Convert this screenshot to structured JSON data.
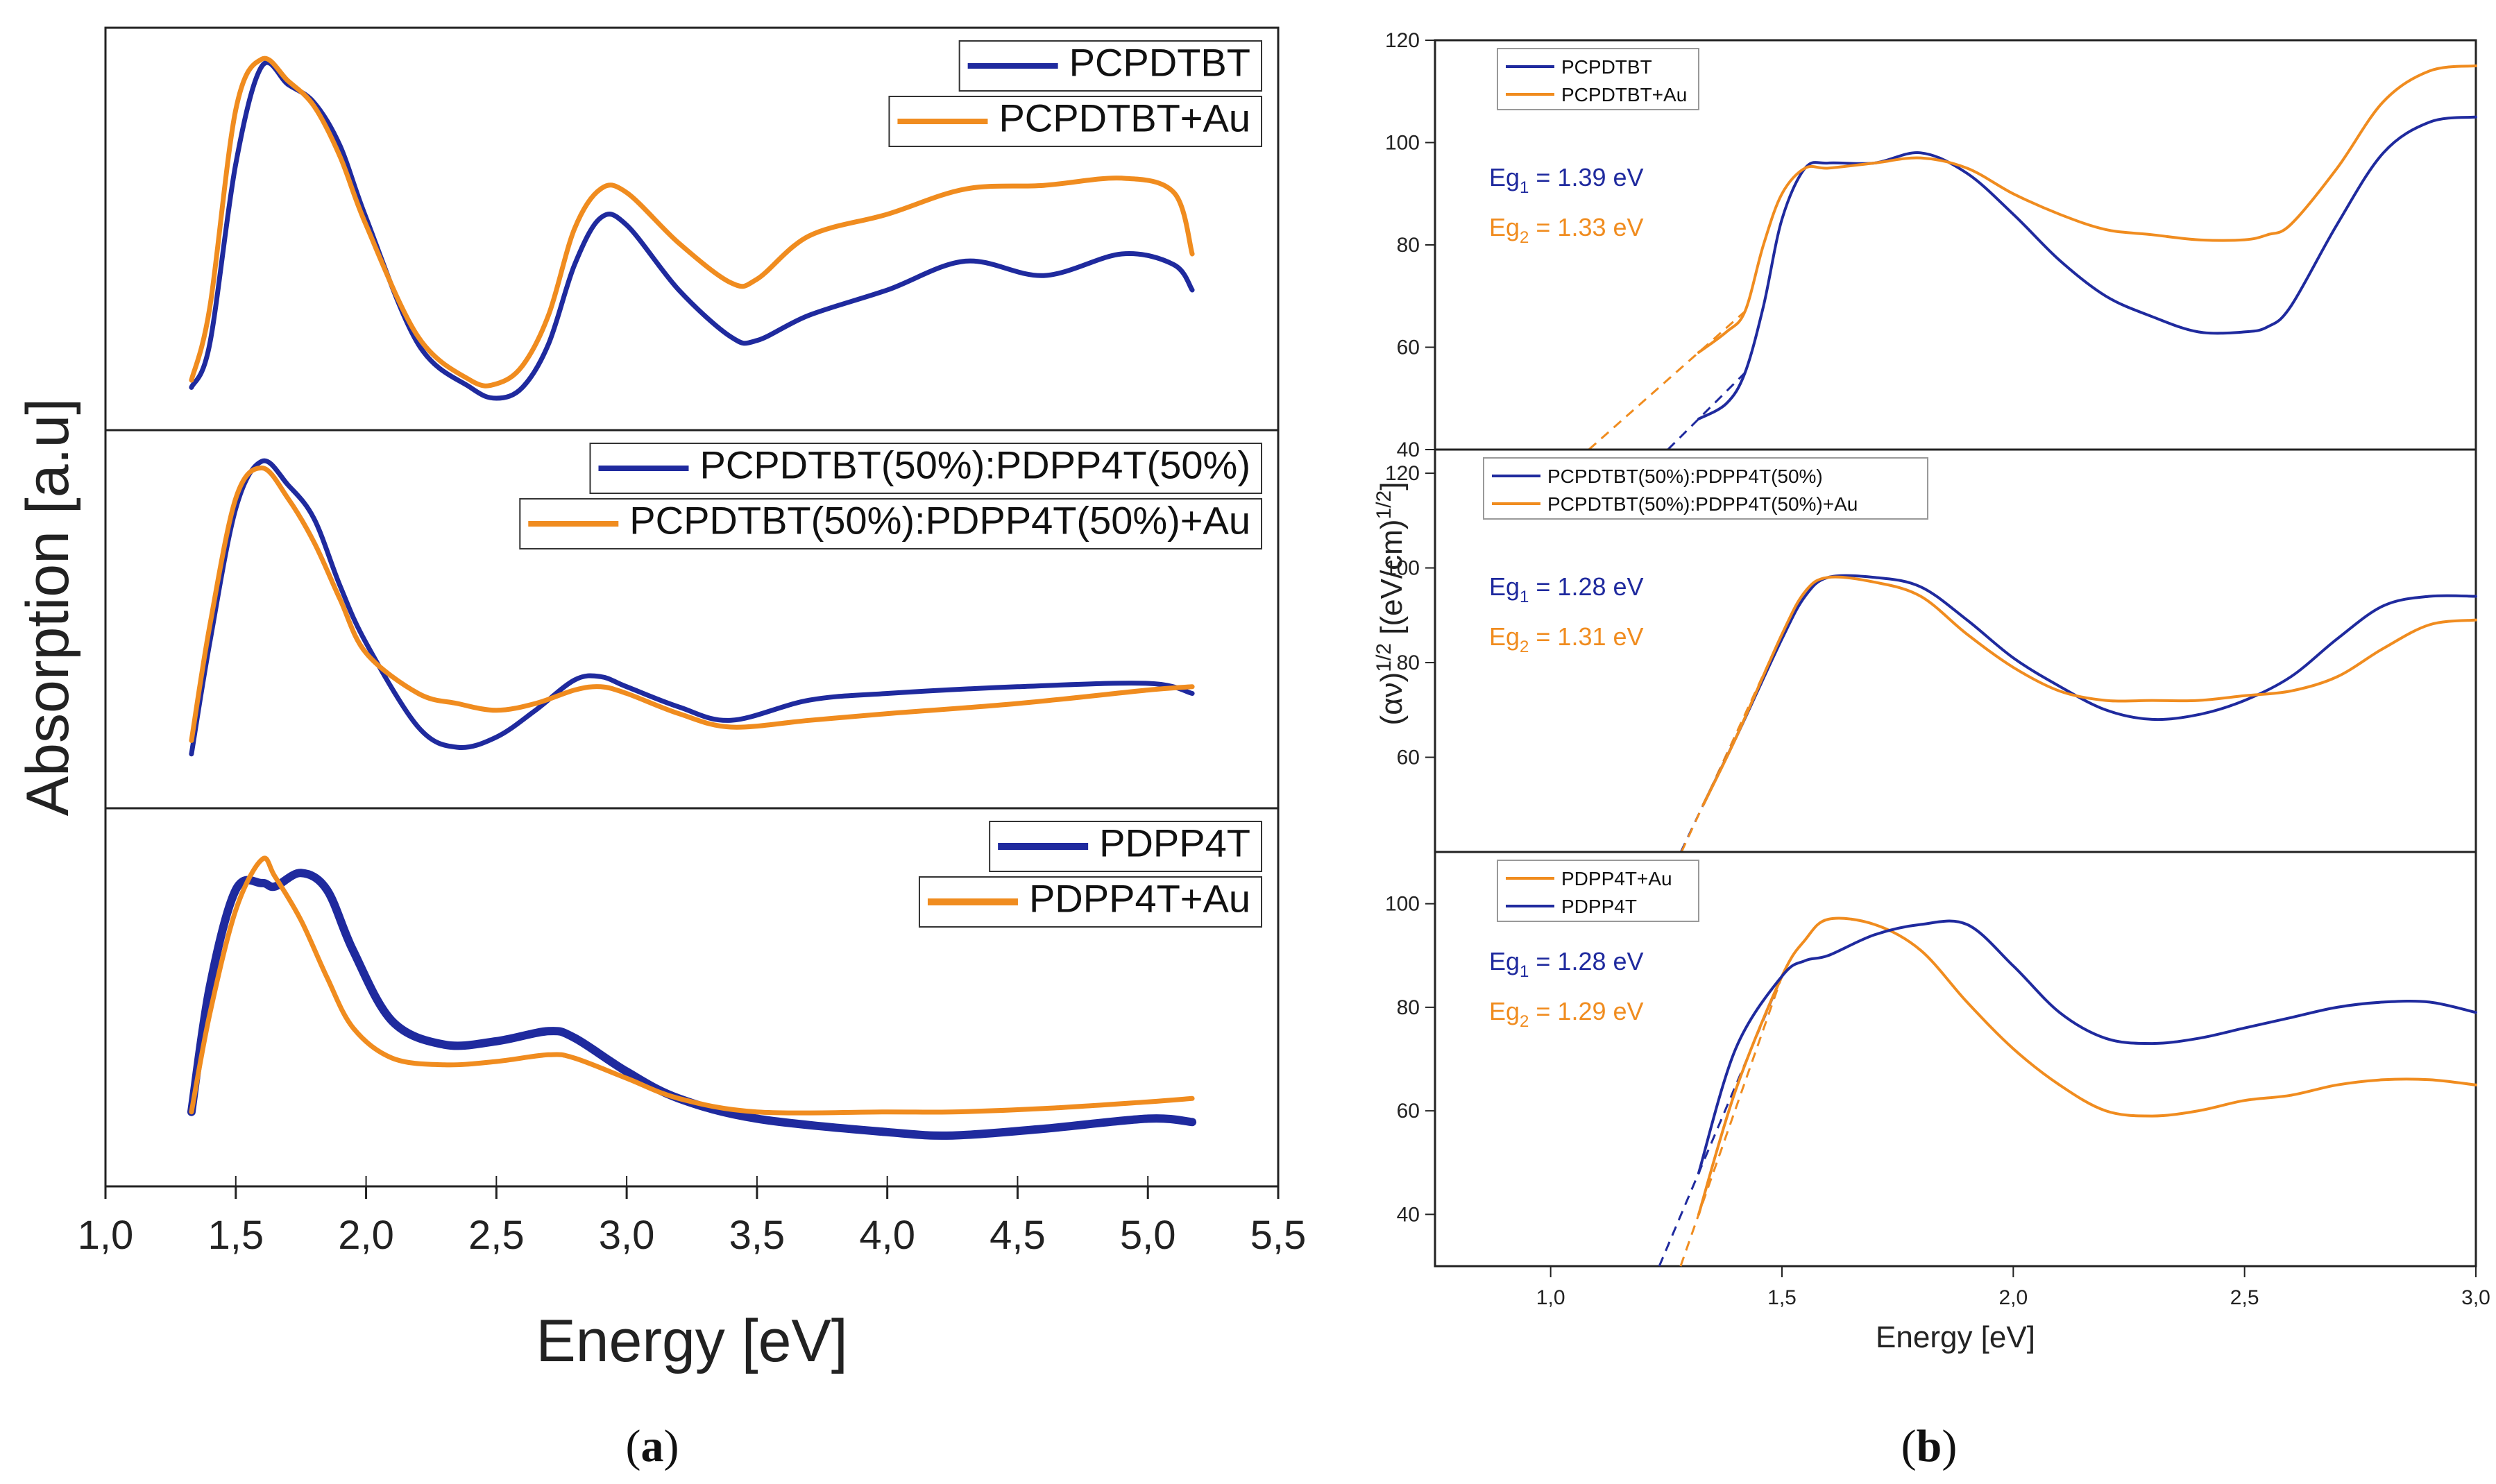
{
  "colors": {
    "blue": "#1f2a9e",
    "orange": "#f08c1f"
  },
  "panel_a": {
    "caption": "a",
    "xlabel": "Energy [eV]",
    "ylabel": "Absorption [a.u]",
    "xlim": [
      1.0,
      5.5
    ],
    "xticks": [
      "1,0",
      "1,5",
      "2,0",
      "2,5",
      "3,0",
      "3,5",
      "4,0",
      "4,5",
      "5,0",
      "5,5"
    ]
  },
  "panel_b": {
    "caption": "b",
    "xlabel": "Energy [eV]",
    "ylabel": "(αν)^1/2 [(eV/cm)^1/2]",
    "xlim": [
      0.75,
      3.0
    ],
    "xticks": [
      "1,0",
      "1,5",
      "2,0",
      "2,5",
      "3,0"
    ]
  },
  "chart_data": [
    {
      "type": "line",
      "title": "",
      "xlabel": "Energy [eV]",
      "ylabel": "Absorption [a.u]",
      "xlim": [
        1.0,
        5.5
      ],
      "ylim": [
        0,
        1
      ],
      "series": [
        {
          "name": "PCPDTBT",
          "color": "blue",
          "x": [
            1.33,
            1.4,
            1.5,
            1.6,
            1.7,
            1.8,
            1.9,
            2.0,
            2.2,
            2.4,
            2.5,
            2.6,
            2.7,
            2.8,
            2.9,
            3.0,
            3.2,
            3.4,
            3.5,
            3.7,
            4.0,
            4.3,
            4.6,
            4.9,
            5.1,
            5.17
          ],
          "y": [
            0.08,
            0.2,
            0.7,
            0.97,
            0.92,
            0.87,
            0.75,
            0.55,
            0.2,
            0.08,
            0.05,
            0.08,
            0.2,
            0.42,
            0.55,
            0.53,
            0.35,
            0.22,
            0.21,
            0.28,
            0.35,
            0.43,
            0.39,
            0.45,
            0.42,
            0.35
          ]
        },
        {
          "name": "PCPDTBT+Au",
          "color": "orange",
          "x": [
            1.33,
            1.4,
            1.5,
            1.6,
            1.7,
            1.8,
            1.9,
            2.0,
            2.2,
            2.4,
            2.5,
            2.6,
            2.7,
            2.8,
            2.9,
            3.0,
            3.2,
            3.4,
            3.5,
            3.7,
            4.0,
            4.3,
            4.6,
            4.9,
            5.1,
            5.17
          ],
          "y": [
            0.1,
            0.3,
            0.85,
            0.99,
            0.93,
            0.86,
            0.72,
            0.53,
            0.22,
            0.1,
            0.09,
            0.14,
            0.28,
            0.52,
            0.63,
            0.62,
            0.48,
            0.37,
            0.38,
            0.5,
            0.56,
            0.63,
            0.64,
            0.66,
            0.62,
            0.45
          ]
        }
      ]
    },
    {
      "type": "line",
      "title": "",
      "xlabel": "Energy [eV]",
      "ylabel": "Absorption [a.u]",
      "xlim": [
        1.0,
        5.5
      ],
      "ylim": [
        0,
        1
      ],
      "series": [
        {
          "name": "PCPDTBT(50%):PDPP4T(50%)",
          "color": "blue",
          "x": [
            1.33,
            1.4,
            1.5,
            1.6,
            1.7,
            1.8,
            1.9,
            2.0,
            2.2,
            2.35,
            2.5,
            2.65,
            2.8,
            2.9,
            3.0,
            3.2,
            3.4,
            3.7,
            4.0,
            4.5,
            5.0,
            5.17
          ],
          "y": [
            0.12,
            0.45,
            0.85,
            0.99,
            0.92,
            0.82,
            0.62,
            0.45,
            0.2,
            0.14,
            0.17,
            0.25,
            0.34,
            0.35,
            0.32,
            0.26,
            0.22,
            0.28,
            0.3,
            0.32,
            0.33,
            0.3
          ]
        },
        {
          "name": "PCPDTBT(50%):PDPP4T(50%)+Au",
          "color": "orange",
          "x": [
            1.33,
            1.4,
            1.5,
            1.6,
            1.7,
            1.8,
            1.9,
            2.0,
            2.2,
            2.35,
            2.5,
            2.65,
            2.8,
            2.9,
            3.0,
            3.2,
            3.4,
            3.7,
            4.0,
            4.5,
            5.0,
            5.17
          ],
          "y": [
            0.16,
            0.5,
            0.88,
            0.97,
            0.88,
            0.75,
            0.58,
            0.42,
            0.3,
            0.27,
            0.25,
            0.27,
            0.31,
            0.32,
            0.3,
            0.24,
            0.2,
            0.22,
            0.24,
            0.27,
            0.31,
            0.32
          ]
        }
      ]
    },
    {
      "type": "line",
      "title": "",
      "xlabel": "Energy [eV]",
      "ylabel": "Absorption [a.u]",
      "xlim": [
        1.0,
        5.5
      ],
      "ylim": [
        0,
        1
      ],
      "series": [
        {
          "name": "PDPP4T",
          "color": "blue",
          "x": [
            1.33,
            1.4,
            1.5,
            1.6,
            1.65,
            1.75,
            1.85,
            1.95,
            2.1,
            2.3,
            2.5,
            2.7,
            2.8,
            3.0,
            3.2,
            3.5,
            4.0,
            4.25,
            4.6,
            5.0,
            5.17
          ],
          "y": [
            0.18,
            0.55,
            0.84,
            0.86,
            0.85,
            0.89,
            0.84,
            0.66,
            0.45,
            0.38,
            0.39,
            0.42,
            0.4,
            0.3,
            0.22,
            0.16,
            0.12,
            0.11,
            0.13,
            0.16,
            0.15
          ]
        },
        {
          "name": "PDPP4T+Au",
          "color": "orange",
          "x": [
            1.33,
            1.4,
            1.5,
            1.6,
            1.65,
            1.75,
            1.85,
            1.95,
            2.1,
            2.3,
            2.5,
            2.7,
            2.8,
            3.0,
            3.2,
            3.5,
            4.0,
            4.25,
            4.6,
            5.0,
            5.17
          ],
          "y": [
            0.18,
            0.47,
            0.78,
            0.93,
            0.88,
            0.75,
            0.58,
            0.43,
            0.34,
            0.32,
            0.33,
            0.35,
            0.34,
            0.28,
            0.22,
            0.18,
            0.18,
            0.18,
            0.19,
            0.21,
            0.22
          ]
        }
      ]
    },
    {
      "type": "line",
      "title": "",
      "xlabel": "Energy [eV]",
      "ylabel": "(αν)^1/2 [(eV/cm)^1/2]",
      "xlim": [
        0.75,
        3.0
      ],
      "ylim": [
        40,
        120
      ],
      "yticks": [
        40,
        60,
        80,
        100,
        120
      ],
      "annotations": [
        {
          "label": "Eg1 = 1.39 eV",
          "color": "blue"
        },
        {
          "label": "Eg2 = 1.33 eV",
          "color": "orange"
        }
      ],
      "series": [
        {
          "name": "PCPDTBT",
          "color": "blue",
          "x": [
            1.32,
            1.38,
            1.42,
            1.46,
            1.5,
            1.55,
            1.6,
            1.7,
            1.8,
            1.9,
            2.0,
            2.1,
            2.2,
            2.3,
            2.4,
            2.5,
            2.55,
            2.6,
            2.7,
            2.8,
            2.9,
            3.0
          ],
          "y": [
            46,
            49,
            55,
            68,
            85,
            95,
            96,
            96,
            98,
            94,
            86,
            77,
            70,
            66,
            63,
            63,
            64,
            68,
            84,
            98,
            104,
            105
          ]
        },
        {
          "name": "PCPDTBT+Au",
          "color": "orange",
          "x": [
            1.32,
            1.38,
            1.42,
            1.46,
            1.5,
            1.55,
            1.6,
            1.7,
            1.8,
            1.9,
            2.0,
            2.1,
            2.2,
            2.3,
            2.4,
            2.5,
            2.55,
            2.6,
            2.7,
            2.8,
            2.9,
            3.0
          ],
          "y": [
            59,
            63,
            67,
            80,
            90,
            95,
            95,
            96,
            97,
            95,
            90,
            86,
            83,
            82,
            81,
            81,
            82,
            84,
            95,
            108,
            114,
            115
          ]
        }
      ]
    },
    {
      "type": "line",
      "title": "",
      "xlabel": "Energy [eV]",
      "ylabel": "(αν)^1/2 [(eV/cm)^1/2]",
      "xlim": [
        0.75,
        3.0
      ],
      "ylim": [
        40,
        125
      ],
      "yticks": [
        60,
        80,
        100,
        120
      ],
      "annotations": [
        {
          "label": "Eg1 = 1.28 eV",
          "color": "blue"
        },
        {
          "label": "Eg2 = 1.31 eV",
          "color": "orange"
        }
      ],
      "series": [
        {
          "name": "PCPDTBT(50%):PDPP4T(50%)",
          "color": "blue",
          "x": [
            1.33,
            1.4,
            1.5,
            1.55,
            1.6,
            1.7,
            1.8,
            1.9,
            2.0,
            2.1,
            2.2,
            2.3,
            2.4,
            2.5,
            2.6,
            2.7,
            2.8,
            2.9,
            3.0
          ],
          "y": [
            50,
            64,
            85,
            94,
            98,
            98,
            96,
            89,
            81,
            75,
            70,
            68,
            69,
            72,
            77,
            85,
            92,
            94,
            94
          ]
        },
        {
          "name": "PCPDTBT(50%):PDPP4T(50%)+Au",
          "color": "orange",
          "x": [
            1.33,
            1.4,
            1.5,
            1.55,
            1.6,
            1.7,
            1.8,
            1.9,
            2.0,
            2.1,
            2.2,
            2.3,
            2.4,
            2.5,
            2.6,
            2.7,
            2.8,
            2.9,
            3.0
          ],
          "y": [
            50,
            64,
            86,
            95,
            98,
            97,
            94,
            86,
            79,
            74,
            72,
            72,
            72,
            73,
            74,
            77,
            83,
            88,
            89
          ]
        }
      ]
    },
    {
      "type": "line",
      "title": "",
      "xlabel": "Energy [eV]",
      "ylabel": "(αν)^1/2 [(eV/cm)^1/2]",
      "xlim": [
        0.75,
        3.0
      ],
      "ylim": [
        30,
        110
      ],
      "yticks": [
        40,
        60,
        80,
        100
      ],
      "annotations": [
        {
          "label": "Eg1 = 1.28 eV",
          "color": "blue"
        },
        {
          "label": "Eg2 = 1.29 eV",
          "color": "orange"
        }
      ],
      "series": [
        {
          "name": "PDPP4T+Au",
          "color": "orange",
          "x": [
            1.32,
            1.4,
            1.5,
            1.55,
            1.6,
            1.7,
            1.8,
            1.9,
            2.0,
            2.1,
            2.2,
            2.3,
            2.4,
            2.5,
            2.6,
            2.7,
            2.8,
            2.9,
            3.0
          ],
          "y": [
            40,
            64,
            86,
            93,
            97,
            96,
            91,
            81,
            72,
            65,
            60,
            59,
            60,
            62,
            63,
            65,
            66,
            66,
            65
          ]
        },
        {
          "name": "PDPP4T",
          "color": "blue",
          "x": [
            1.32,
            1.4,
            1.5,
            1.55,
            1.6,
            1.7,
            1.8,
            1.9,
            2.0,
            2.1,
            2.2,
            2.3,
            2.4,
            2.5,
            2.6,
            2.7,
            2.8,
            2.9,
            3.0
          ],
          "y": [
            48,
            72,
            86,
            89,
            90,
            94,
            96,
            96,
            88,
            79,
            74,
            73,
            74,
            76,
            78,
            80,
            81,
            81,
            79
          ]
        }
      ]
    }
  ]
}
